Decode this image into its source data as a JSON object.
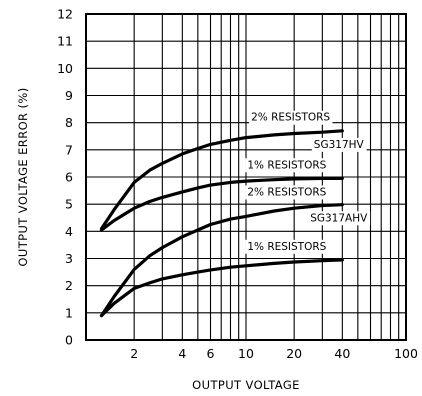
{
  "chart_data": {
    "type": "line",
    "title": "",
    "xlabel": "OUTPUT VOLTAGE",
    "ylabel": "OUTPUT VOLTAGE ERROR (%)",
    "x_scale": "log",
    "xlim": [
      1,
      100
    ],
    "ylim": [
      0,
      12
    ],
    "grid": true,
    "x_ticks": [
      2,
      4,
      6,
      10,
      20,
      40,
      100
    ],
    "x_tick_labels": [
      "2",
      "4",
      "6",
      "10",
      "20",
      "40",
      "100"
    ],
    "y_ticks": [
      0,
      1,
      2,
      3,
      4,
      5,
      6,
      7,
      8,
      9,
      10,
      11,
      12
    ],
    "y_tick_labels": [
      "0",
      "1",
      "2",
      "3",
      "4",
      "5",
      "6",
      "7",
      "8",
      "9",
      "10",
      "11",
      "12"
    ],
    "series": [
      {
        "name": "SG317HV 2% RESISTORS",
        "x": [
          1.25,
          1.5,
          2,
          2.5,
          3,
          4,
          5,
          6,
          8,
          10,
          15,
          20,
          30,
          40
        ],
        "y": [
          4.1,
          4.8,
          5.8,
          6.25,
          6.5,
          6.85,
          7.05,
          7.2,
          7.35,
          7.45,
          7.55,
          7.6,
          7.65,
          7.7
        ]
      },
      {
        "name": "SG317HV 1% RESISTORS",
        "x": [
          1.25,
          1.5,
          2,
          2.5,
          3,
          4,
          5,
          6,
          8,
          10,
          15,
          20,
          30,
          40
        ],
        "y": [
          4.05,
          4.4,
          4.85,
          5.1,
          5.25,
          5.45,
          5.6,
          5.7,
          5.8,
          5.85,
          5.9,
          5.93,
          5.95,
          5.95
        ]
      },
      {
        "name": "SG317AHV 2% RESISTORS",
        "x": [
          1.25,
          1.5,
          2,
          2.5,
          3,
          4,
          5,
          6,
          8,
          10,
          15,
          20,
          30,
          40
        ],
        "y": [
          0.9,
          1.6,
          2.6,
          3.1,
          3.4,
          3.8,
          4.05,
          4.25,
          4.45,
          4.55,
          4.75,
          4.85,
          4.95,
          4.98
        ]
      },
      {
        "name": "SG317AHV 1% RESISTORS",
        "x": [
          1.25,
          1.5,
          2,
          2.5,
          3,
          4,
          5,
          6,
          8,
          10,
          15,
          20,
          30,
          40
        ],
        "y": [
          0.9,
          1.35,
          1.9,
          2.1,
          2.25,
          2.4,
          2.5,
          2.58,
          2.68,
          2.73,
          2.82,
          2.87,
          2.92,
          2.95
        ]
      }
    ],
    "annotations": [
      {
        "text": "2% RESISTORS",
        "x": 19,
        "y": 8.2
      },
      {
        "text": "SG317HV",
        "x": 38,
        "y": 7.2
      },
      {
        "text": "1% RESISTORS",
        "x": 18,
        "y": 6.45
      },
      {
        "text": "2% RESISTORS",
        "x": 18,
        "y": 5.45
      },
      {
        "text": "SG317AHV",
        "x": 38,
        "y": 4.5
      },
      {
        "text": "1% RESISTORS",
        "x": 18,
        "y": 3.45
      }
    ]
  }
}
